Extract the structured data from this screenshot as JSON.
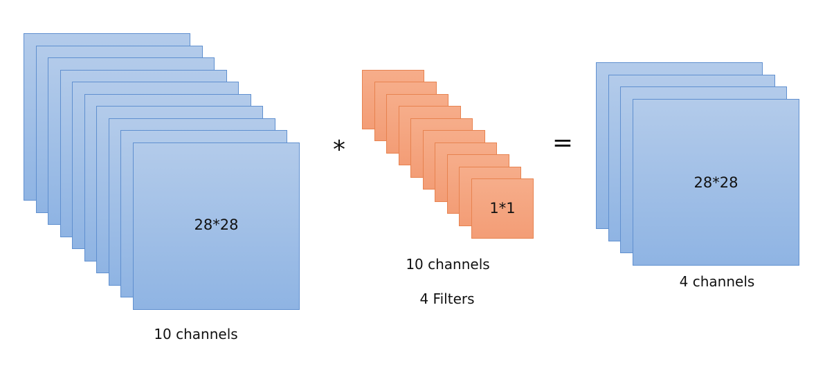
{
  "input_stack": {
    "label": "28*28",
    "caption": "10 channels",
    "color_fill": "#a5c2e8",
    "color_border": "#5f8fcf"
  },
  "operator_multiply": "*",
  "filter_stack": {
    "label": "1*1",
    "caption_channels": "10 channels",
    "caption_filters": "4 Filters",
    "color_fill": "#f5a683",
    "color_border": "#e7824f"
  },
  "operator_equals": "=",
  "output_stack": {
    "label": "28*28",
    "caption": "4 channels",
    "color_fill": "#a5c2e8",
    "color_border": "#5f8fcf"
  }
}
